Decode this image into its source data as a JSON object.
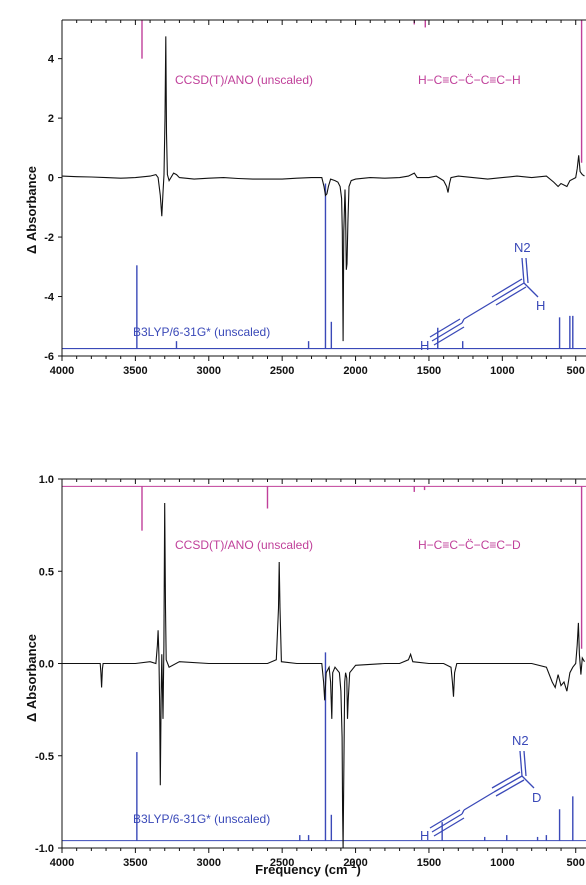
{
  "chart_data": [
    {
      "type": "line",
      "xlabel": "",
      "ylabel": "Δ Absorbance",
      "xlim": [
        4000,
        430
      ],
      "x_reversed": true,
      "ylim": [
        -6,
        5.3
      ],
      "yticks": [
        -6,
        -4,
        -2,
        0,
        2,
        4
      ],
      "xticks": [
        4000,
        3500,
        3000,
        2500,
        2000,
        1500,
        1000,
        500
      ],
      "annotations": {
        "ccsd_label": "CCSD(T)/ANO (unscaled)",
        "b3lyp_label": "B3LYP/6-31G* (unscaled)",
        "carbene_formula": "H−C≡C−C̈−C≡C−H",
        "diazo_substituent": "H",
        "n2_label": "N2",
        "terminal_atom": "H"
      },
      "series": [
        {
          "name": "CCSD(T)/ANO (unscaled)",
          "role": "computed_down",
          "color": "#c0409a",
          "baseline": 5.3,
          "sticks": [
            {
              "x": 3455,
              "y": 4.0
            },
            {
              "x": 1600,
              "y": 5.15
            },
            {
              "x": 1525,
              "y": 5.05
            },
            {
              "x": 460,
              "y": 0.5
            }
          ]
        },
        {
          "name": "B3LYP/6-31G* (unscaled)",
          "role": "computed_up",
          "color": "#3a49b8",
          "baseline": -5.75,
          "sticks": [
            {
              "x": 3490,
              "y": -2.95
            },
            {
              "x": 3220,
              "y": -5.5
            },
            {
              "x": 2320,
              "y": -5.5
            },
            {
              "x": 2205,
              "y": -0.2
            },
            {
              "x": 2165,
              "y": -4.85
            },
            {
              "x": 1440,
              "y": -5.05
            },
            {
              "x": 1270,
              "y": -5.5
            },
            {
              "x": 610,
              "y": -4.7
            },
            {
              "x": 540,
              "y": -4.65
            },
            {
              "x": 520,
              "y": -4.65
            }
          ]
        },
        {
          "role": "experimental",
          "color": "#111111",
          "points": [
            [
              4000,
              0.05
            ],
            [
              3900,
              0.03
            ],
            [
              3800,
              0.02
            ],
            [
              3700,
              0.0
            ],
            [
              3600,
              -0.02
            ],
            [
              3500,
              0.0
            ],
            [
              3400,
              0.05
            ],
            [
              3360,
              0.1
            ],
            [
              3345,
              0.0
            ],
            [
              3330,
              -0.6
            ],
            [
              3320,
              -1.3
            ],
            [
              3312,
              -0.5
            ],
            [
              3305,
              0.1
            ],
            [
              3298,
              2.0
            ],
            [
              3293,
              4.75
            ],
            [
              3288,
              1.5
            ],
            [
              3282,
              0.1
            ],
            [
              3270,
              -0.1
            ],
            [
              3240,
              0.15
            ],
            [
              3220,
              0.1
            ],
            [
              3200,
              0.0
            ],
            [
              3100,
              -0.05
            ],
            [
              3000,
              -0.02
            ],
            [
              2900,
              0.0
            ],
            [
              2800,
              -0.03
            ],
            [
              2700,
              -0.05
            ],
            [
              2600,
              -0.05
            ],
            [
              2500,
              -0.05
            ],
            [
              2400,
              -0.02
            ],
            [
              2300,
              0.0
            ],
            [
              2230,
              0.0
            ],
            [
              2215,
              -0.3
            ],
            [
              2205,
              -0.6
            ],
            [
              2195,
              -0.55
            ],
            [
              2185,
              -0.3
            ],
            [
              2170,
              -0.05
            ],
            [
              2140,
              -0.1
            ],
            [
              2120,
              -0.15
            ],
            [
              2105,
              -0.3
            ],
            [
              2095,
              -0.7
            ],
            [
              2090,
              -1.8
            ],
            [
              2085,
              -5.5
            ],
            [
              2080,
              -1.8
            ],
            [
              2072,
              -0.4
            ],
            [
              2068,
              -1.2
            ],
            [
              2063,
              -3.1
            ],
            [
              2058,
              -2.9
            ],
            [
              2052,
              -1.5
            ],
            [
              2045,
              -0.3
            ],
            [
              2030,
              -0.1
            ],
            [
              2000,
              -0.05
            ],
            [
              1900,
              0.0
            ],
            [
              1800,
              -0.02
            ],
            [
              1700,
              0.0
            ],
            [
              1640,
              0.05
            ],
            [
              1600,
              0.15
            ],
            [
              1580,
              0.0
            ],
            [
              1500,
              0.0
            ],
            [
              1450,
              0.05
            ],
            [
              1400,
              -0.1
            ],
            [
              1380,
              -0.3
            ],
            [
              1370,
              -0.5
            ],
            [
              1360,
              -0.2
            ],
            [
              1350,
              0.0
            ],
            [
              1300,
              0.05
            ],
            [
              1200,
              0.0
            ],
            [
              1100,
              -0.05
            ],
            [
              1000,
              0.0
            ],
            [
              900,
              0.05
            ],
            [
              800,
              0.0
            ],
            [
              700,
              0.05
            ],
            [
              650,
              -0.15
            ],
            [
              620,
              -0.3
            ],
            [
              600,
              -0.2
            ],
            [
              560,
              -0.3
            ],
            [
              540,
              -0.1
            ],
            [
              500,
              0.0
            ],
            [
              490,
              0.3
            ],
            [
              480,
              0.75
            ],
            [
              470,
              0.2
            ],
            [
              455,
              0.1
            ],
            [
              440,
              0.05
            ]
          ]
        }
      ]
    },
    {
      "type": "line",
      "xlabel": "Frequency (cm",
      "xlabel_sup": "-1",
      "xlabel_close": ")",
      "ylabel": "Δ Absorbance",
      "xlim": [
        4000,
        430
      ],
      "x_reversed": true,
      "ylim": [
        -1.0,
        1.0
      ],
      "yticks": [
        -1.0,
        -0.5,
        0.0,
        0.5,
        1.0
      ],
      "ytick_labels": [
        "-1.0",
        "-0.5",
        "0.0",
        "0.5",
        "1.0"
      ],
      "xticks": [
        4000,
        3500,
        3000,
        2500,
        2000,
        1500,
        1000,
        500
      ],
      "annotations": {
        "ccsd_label": "CCSD(T)/ANO (unscaled)",
        "b3lyp_label": "B3LYP/6-31G* (unscaled)",
        "carbene_formula": "H−C≡C−C̈−C≡C−D",
        "diazo_substituent": "D",
        "n2_label": "N2",
        "terminal_atom": "H"
      },
      "series": [
        {
          "name": "CCSD(T)/ANO (unscaled)",
          "role": "computed_down",
          "color": "#c0409a",
          "baseline": 0.96,
          "sticks": [
            {
              "x": 3455,
              "y": 0.72
            },
            {
              "x": 2600,
              "y": 0.84
            },
            {
              "x": 1600,
              "y": 0.93
            },
            {
              "x": 1530,
              "y": 0.94
            },
            {
              "x": 460,
              "y": 0.08
            }
          ]
        },
        {
          "name": "B3LYP/6-31G* (unscaled)",
          "role": "computed_up",
          "color": "#3a49b8",
          "baseline": -0.96,
          "sticks": [
            {
              "x": 3490,
              "y": -0.48
            },
            {
              "x": 2380,
              "y": -0.93
            },
            {
              "x": 2320,
              "y": -0.93
            },
            {
              "x": 2205,
              "y": 0.06
            },
            {
              "x": 2165,
              "y": -0.82
            },
            {
              "x": 1410,
              "y": -0.86
            },
            {
              "x": 1120,
              "y": -0.94
            },
            {
              "x": 970,
              "y": -0.93
            },
            {
              "x": 760,
              "y": -0.94
            },
            {
              "x": 700,
              "y": -0.93
            },
            {
              "x": 610,
              "y": -0.79
            },
            {
              "x": 520,
              "y": -0.72
            }
          ]
        },
        {
          "role": "experimental",
          "color": "#111111",
          "points": [
            [
              4000,
              0.0
            ],
            [
              3900,
              0.0
            ],
            [
              3800,
              0.0
            ],
            [
              3740,
              0.0
            ],
            [
              3735,
              -0.05
            ],
            [
              3730,
              -0.13
            ],
            [
              3725,
              -0.03
            ],
            [
              3720,
              0.0
            ],
            [
              3600,
              0.0
            ],
            [
              3500,
              0.0
            ],
            [
              3400,
              0.01
            ],
            [
              3360,
              0.0
            ],
            [
              3350,
              0.1
            ],
            [
              3345,
              0.18
            ],
            [
              3340,
              0.05
            ],
            [
              3335,
              -0.2
            ],
            [
              3330,
              -0.66
            ],
            [
              3325,
              -0.2
            ],
            [
              3320,
              0.05
            ],
            [
              3312,
              -0.3
            ],
            [
              3306,
              0.1
            ],
            [
              3300,
              0.87
            ],
            [
              3295,
              0.3
            ],
            [
              3290,
              0.02
            ],
            [
              3270,
              -0.02
            ],
            [
              3200,
              0.01
            ],
            [
              3000,
              0.0
            ],
            [
              2800,
              0.0
            ],
            [
              2600,
              0.0
            ],
            [
              2540,
              0.02
            ],
            [
              2525,
              0.3
            ],
            [
              2520,
              0.55
            ],
            [
              2515,
              0.3
            ],
            [
              2505,
              0.01
            ],
            [
              2400,
              0.0
            ],
            [
              2300,
              0.0
            ],
            [
              2230,
              0.0
            ],
            [
              2218,
              -0.1
            ],
            [
              2210,
              -0.2
            ],
            [
              2200,
              -0.05
            ],
            [
              2180,
              -0.02
            ],
            [
              2170,
              -0.1
            ],
            [
              2162,
              -0.3
            ],
            [
              2156,
              -0.05
            ],
            [
              2140,
              -0.02
            ],
            [
              2110,
              -0.05
            ],
            [
              2100,
              -0.15
            ],
            [
              2092,
              -0.4
            ],
            [
              2088,
              -0.8
            ],
            [
              2085,
              -1.0
            ],
            [
              2080,
              -0.6
            ],
            [
              2074,
              -0.1
            ],
            [
              2068,
              -0.05
            ],
            [
              2060,
              -0.08
            ],
            [
              2055,
              -0.3
            ],
            [
              2050,
              -0.2
            ],
            [
              2040,
              -0.05
            ],
            [
              2000,
              -0.01
            ],
            [
              1800,
              0.0
            ],
            [
              1700,
              0.0
            ],
            [
              1640,
              0.02
            ],
            [
              1625,
              0.05
            ],
            [
              1610,
              0.01
            ],
            [
              1500,
              0.0
            ],
            [
              1400,
              0.0
            ],
            [
              1350,
              -0.02
            ],
            [
              1340,
              -0.1
            ],
            [
              1333,
              -0.18
            ],
            [
              1325,
              -0.05
            ],
            [
              1310,
              0.0
            ],
            [
              1200,
              0.0
            ],
            [
              1000,
              0.0
            ],
            [
              800,
              0.0
            ],
            [
              700,
              -0.02
            ],
            [
              660,
              -0.1
            ],
            [
              640,
              -0.13
            ],
            [
              620,
              -0.06
            ],
            [
              600,
              -0.12
            ],
            [
              580,
              -0.1
            ],
            [
              560,
              -0.15
            ],
            [
              540,
              -0.05
            ],
            [
              520,
              -0.02
            ],
            [
              500,
              0.0
            ],
            [
              490,
              0.1
            ],
            [
              482,
              0.22
            ],
            [
              475,
              0.05
            ],
            [
              465,
              -0.06
            ],
            [
              455,
              0.03
            ],
            [
              440,
              0.01
            ]
          ]
        }
      ]
    }
  ]
}
